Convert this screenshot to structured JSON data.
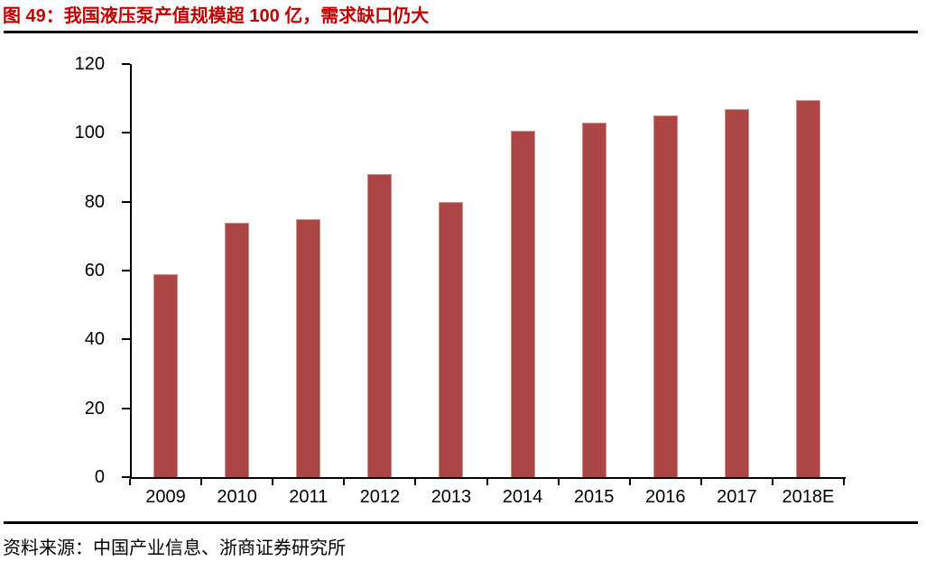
{
  "title": "图 49：我国液压泵产值规模超 100 亿，需求缺口仍大",
  "source": "资料来源：中国产业信息、浙商证券研究所",
  "colors": {
    "title_red": "#C00000",
    "bar_fill": "#AC4644",
    "bar_border": "#C9918E",
    "axis": "#000000",
    "rule": "#000000"
  },
  "chart_data": {
    "type": "bar",
    "categories": [
      "2009",
      "2010",
      "2011",
      "2012",
      "2013",
      "2014",
      "2015",
      "2016",
      "2017",
      "2018E"
    ],
    "values": [
      59,
      74,
      75,
      88,
      80,
      100.5,
      103,
      105,
      107,
      109.5
    ],
    "title": "图 49：我国液压泵产值规模超 100 亿，需求缺口仍大",
    "xlabel": "",
    "ylabel": "",
    "ylim": [
      0,
      120
    ],
    "yticks": [
      0,
      20,
      40,
      60,
      80,
      100,
      120
    ],
    "grid": false,
    "legend": "none",
    "bar_color": "#AC4644"
  }
}
